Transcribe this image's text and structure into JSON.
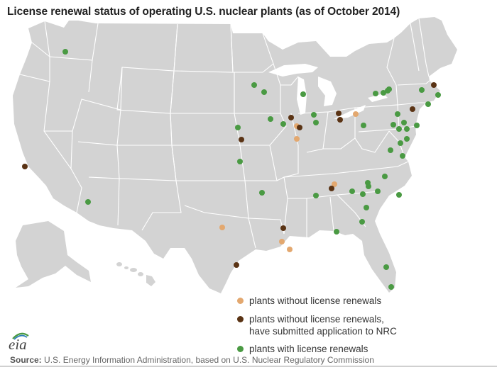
{
  "title": "License renewal status of operating U.S. nuclear plants (as of October 2014)",
  "colors": {
    "land": "#d3d3d3",
    "border": "#ffffff",
    "no_renewal": "#e3a86f",
    "submitted": "#5a3314",
    "renewed": "#4a9a43"
  },
  "legend": {
    "no_renewal": "plants without license renewals",
    "submitted_line1": "plants without license renewals,",
    "submitted_line2": "have submitted application to NRC",
    "renewed": "plants with license renewals"
  },
  "logo_text": "eia",
  "source": {
    "label": "Source:",
    "text": " U.S. Energy Information Administration, based on U.S. Nuclear Regulatory Commission"
  }
}
